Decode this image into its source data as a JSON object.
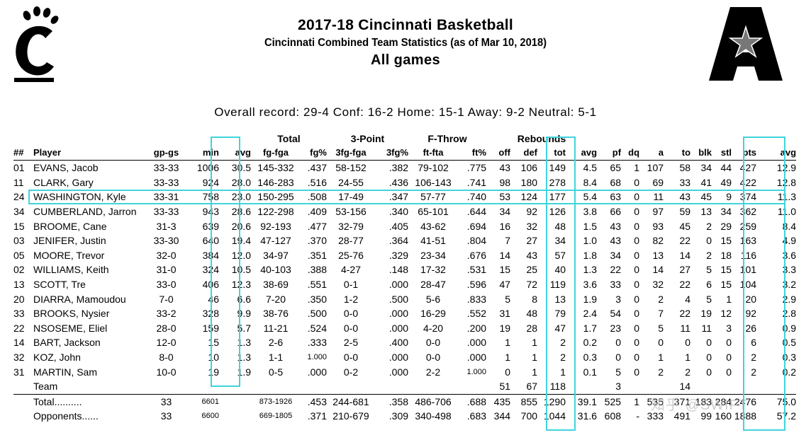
{
  "header": {
    "title": "2017-18 Cincinnati Basketball",
    "subtitle": "Cincinnati Combined Team Statistics (as of Mar 10, 2018)",
    "scope": "All games",
    "record": "Overall record: 29-4   Conf: 16-2   Home: 15-1   Away: 9-2   Neutral: 5-1"
  },
  "logos": {
    "left": "cincinnati-c-paw-logo",
    "right": "american-athletic-conference-logo"
  },
  "table": {
    "group_headers": {
      "total": "Total",
      "three_point": "3-Point",
      "free_throw": "F-Throw",
      "rebounds": "Rebounds"
    },
    "columns": [
      "##",
      "Player",
      "gp-gs",
      "min",
      "avg",
      "fg-fga",
      "fg%",
      "3fg-fga",
      "3fg%",
      "ft-fta",
      "ft%",
      "off",
      "def",
      "tot",
      "avg",
      "pf",
      "dq",
      "a",
      "to",
      "blk",
      "stl",
      "pts",
      "avg"
    ],
    "rows": [
      [
        "01",
        "EVANS, Jacob",
        "33-33",
        "1006",
        "30.5",
        "145-332",
        ".437",
        "58-152",
        ".382",
        "79-102",
        ".775",
        "43",
        "106",
        "149",
        "4.5",
        "65",
        "1",
        "107",
        "58",
        "34",
        "44",
        "427",
        "12.9"
      ],
      [
        "11",
        "CLARK, Gary",
        "33-33",
        "924",
        "28.0",
        "146-283",
        ".516",
        "24-55",
        ".436",
        "106-143",
        ".741",
        "98",
        "180",
        "278",
        "8.4",
        "68",
        "0",
        "69",
        "33",
        "41",
        "49",
        "422",
        "12.8"
      ],
      [
        "24",
        "WASHINGTON, Kyle",
        "33-31",
        "758",
        "23.0",
        "150-295",
        ".508",
        "17-49",
        ".347",
        "57-77",
        ".740",
        "53",
        "124",
        "177",
        "5.4",
        "63",
        "0",
        "11",
        "43",
        "45",
        "9",
        "374",
        "11.3"
      ],
      [
        "34",
        "CUMBERLAND, Jarron",
        "33-33",
        "943",
        "28.6",
        "122-298",
        ".409",
        "53-156",
        ".340",
        "65-101",
        ".644",
        "34",
        "92",
        "126",
        "3.8",
        "66",
        "0",
        "97",
        "59",
        "13",
        "34",
        "362",
        "11.0"
      ],
      [
        "15",
        "BROOME, Cane",
        "31-3",
        "639",
        "20.6",
        "92-193",
        ".477",
        "32-79",
        ".405",
        "43-62",
        ".694",
        "16",
        "32",
        "48",
        "1.5",
        "43",
        "0",
        "93",
        "45",
        "2",
        "29",
        "259",
        "8.4"
      ],
      [
        "03",
        "JENIFER, Justin",
        "33-30",
        "640",
        "19.4",
        "47-127",
        ".370",
        "28-77",
        ".364",
        "41-51",
        ".804",
        "7",
        "27",
        "34",
        "1.0",
        "43",
        "0",
        "82",
        "22",
        "0",
        "15",
        "163",
        "4.9"
      ],
      [
        "05",
        "MOORE, Trevor",
        "32-0",
        "384",
        "12.0",
        "34-97",
        ".351",
        "25-76",
        ".329",
        "23-34",
        ".676",
        "14",
        "43",
        "57",
        "1.8",
        "34",
        "0",
        "13",
        "14",
        "2",
        "18",
        "116",
        "3.6"
      ],
      [
        "02",
        "WILLIAMS, Keith",
        "31-0",
        "324",
        "10.5",
        "40-103",
        ".388",
        "4-27",
        ".148",
        "17-32",
        ".531",
        "15",
        "25",
        "40",
        "1.3",
        "22",
        "0",
        "14",
        "27",
        "5",
        "15",
        "101",
        "3.3"
      ],
      [
        "13",
        "SCOTT, Tre",
        "33-0",
        "406",
        "12.3",
        "38-69",
        ".551",
        "0-1",
        ".000",
        "28-47",
        ".596",
        "47",
        "72",
        "119",
        "3.6",
        "33",
        "0",
        "32",
        "22",
        "6",
        "15",
        "104",
        "3.2"
      ],
      [
        "20",
        "DIARRA, Mamoudou",
        "7-0",
        "46",
        "6.6",
        "7-20",
        ".350",
        "1-2",
        ".500",
        "5-6",
        ".833",
        "5",
        "8",
        "13",
        "1.9",
        "3",
        "0",
        "2",
        "4",
        "5",
        "1",
        "20",
        "2.9"
      ],
      [
        "33",
        "BROOKS, Nysier",
        "33-2",
        "328",
        "9.9",
        "38-76",
        ".500",
        "0-0",
        ".000",
        "16-29",
        ".552",
        "31",
        "48",
        "79",
        "2.4",
        "54",
        "0",
        "7",
        "22",
        "19",
        "12",
        "92",
        "2.8"
      ],
      [
        "22",
        "NSOSEME, Eliel",
        "28-0",
        "159",
        "5.7",
        "11-21",
        ".524",
        "0-0",
        ".000",
        "4-20",
        ".200",
        "19",
        "28",
        "47",
        "1.7",
        "23",
        "0",
        "5",
        "11",
        "11",
        "3",
        "26",
        "0.9"
      ],
      [
        "14",
        "BART, Jackson",
        "12-0",
        "15",
        "1.3",
        "2-6",
        ".333",
        "2-5",
        ".400",
        "0-0",
        ".000",
        "1",
        "1",
        "2",
        "0.2",
        "0",
        "0",
        "0",
        "0",
        "0",
        "0",
        "6",
        "0.5"
      ],
      [
        "32",
        "KOZ, John",
        "8-0",
        "10",
        "1.3",
        "1-1",
        "1.000",
        "0-0",
        ".000",
        "0-0",
        ".000",
        "1",
        "1",
        "2",
        "0.3",
        "0",
        "0",
        "1",
        "1",
        "0",
        "0",
        "2",
        "0.3"
      ],
      [
        "31",
        "MARTIN, Sam",
        "10-0",
        "19",
        "1.9",
        "0-5",
        ".000",
        "0-2",
        ".000",
        "2-2",
        "1.000",
        "0",
        "1",
        "1",
        "0.1",
        "5",
        "0",
        "2",
        "2",
        "0",
        "0",
        "2",
        "0.2"
      ],
      [
        "",
        "Team",
        "",
        "",
        "",
        "",
        "",
        "",
        "",
        "",
        "",
        "51",
        "67",
        "118",
        "",
        "3",
        "",
        "",
        "14",
        "",
        "",
        "",
        ""
      ]
    ],
    "totals": [
      [
        "",
        "Total..........",
        "33",
        "6601",
        "",
        "873-1926",
        ".453",
        "244-681",
        ".358",
        "486-706",
        ".688",
        "435",
        "855",
        "1290",
        "39.1",
        "525",
        "1",
        "535",
        "371",
        "183",
        "284",
        "2476",
        "75.0"
      ],
      [
        "",
        "Opponents......",
        "33",
        "6600",
        "",
        "669-1805",
        ".371",
        "210-679",
        ".309",
        "340-498",
        ".683",
        "344",
        "700",
        "1044",
        "31.6",
        "608",
        "-",
        "333",
        "491",
        "99",
        "160",
        "1888",
        "57.2"
      ]
    ]
  },
  "watermark": "知乎 @SWIFT",
  "highlight_color": "#40d4dc"
}
